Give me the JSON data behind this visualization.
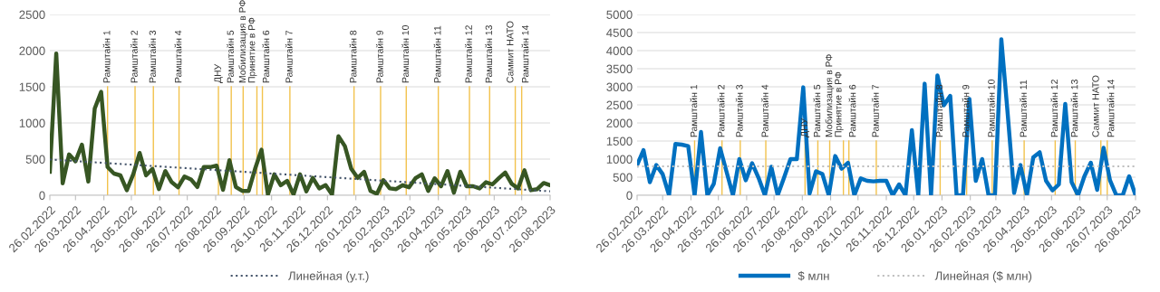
{
  "chart_data": [
    {
      "type": "line",
      "x": [
        "2022-02-26",
        "2022-03-05",
        "2022-03-12",
        "2022-03-19",
        "2022-03-26",
        "2022-04-02",
        "2022-04-09",
        "2022-04-16",
        "2022-04-23",
        "2022-04-30",
        "2022-05-07",
        "2022-05-14",
        "2022-05-21",
        "2022-05-28",
        "2022-06-04",
        "2022-06-11",
        "2022-06-18",
        "2022-06-25",
        "2022-07-02",
        "2022-07-09",
        "2022-07-16",
        "2022-07-23",
        "2022-07-30",
        "2022-08-06",
        "2022-08-13",
        "2022-08-20",
        "2022-08-27",
        "2022-09-03",
        "2022-09-10",
        "2022-09-17",
        "2022-09-24",
        "2022-10-01",
        "2022-10-08",
        "2022-10-15",
        "2022-10-22",
        "2022-10-29",
        "2022-11-05",
        "2022-11-12",
        "2022-11-19",
        "2022-11-26",
        "2022-12-03",
        "2022-12-10",
        "2022-12-17",
        "2022-12-24",
        "2022-12-31",
        "2023-01-07",
        "2023-01-14",
        "2023-01-21",
        "2023-01-28",
        "2023-02-04",
        "2023-02-11",
        "2023-02-18",
        "2023-02-25",
        "2023-03-04",
        "2023-03-11",
        "2023-03-18",
        "2023-03-25",
        "2023-04-01",
        "2023-04-08",
        "2023-04-15",
        "2023-04-22",
        "2023-04-29",
        "2023-05-06",
        "2023-05-13",
        "2023-05-20",
        "2023-05-27",
        "2023-06-03",
        "2023-06-10",
        "2023-06-17",
        "2023-06-24",
        "2023-07-01",
        "2023-07-08",
        "2023-07-15",
        "2023-07-22",
        "2023-07-29",
        "2023-08-05",
        "2023-08-12",
        "2023-08-19",
        "2023-08-26"
      ],
      "series": [
        {
          "color": "#375623",
          "values": [
            325,
            1960,
            165,
            565,
            470,
            700,
            190,
            1200,
            1430,
            390,
            300,
            275,
            70,
            290,
            585,
            275,
            365,
            85,
            335,
            180,
            110,
            260,
            220,
            115,
            390,
            390,
            410,
            75,
            485,
            115,
            60,
            60,
            365,
            630,
            10,
            290,
            140,
            200,
            10,
            290,
            55,
            240,
            95,
            140,
            10,
            815,
            680,
            365,
            240,
            325,
            60,
            20,
            210,
            95,
            85,
            140,
            110,
            235,
            290,
            60,
            235,
            125,
            335,
            35,
            325,
            125,
            125,
            95,
            180,
            150,
            235,
            315,
            160,
            95,
            345,
            70,
            85,
            170,
            140
          ]
        },
        {
          "name": "Линейная (у.т.)",
          "color": "#44546a",
          "line_style": "dotted",
          "x": [
            "2022-02-26",
            "2023-08-26"
          ],
          "values": [
            495,
            55
          ]
        }
      ],
      "xlim": [
        "2022-02-26",
        "2023-08-26"
      ],
      "xticks": [
        {
          "value": "2022-02-26",
          "label": "26.02.2022"
        },
        {
          "value": "2022-03-26",
          "label": "26.03.2022"
        },
        {
          "value": "2022-04-26",
          "label": "26.04.2022"
        },
        {
          "value": "2022-05-26",
          "label": "26.05.2022"
        },
        {
          "value": "2022-06-26",
          "label": "26.06.2022"
        },
        {
          "value": "2022-07-26",
          "label": "26.07.2022"
        },
        {
          "value": "2022-08-26",
          "label": "26.08.2022"
        },
        {
          "value": "2022-09-26",
          "label": "26.09.2022"
        },
        {
          "value": "2022-10-26",
          "label": "26.10.2022"
        },
        {
          "value": "2022-11-26",
          "label": "26.11.2022"
        },
        {
          "value": "2022-12-26",
          "label": "26.12.2022"
        },
        {
          "value": "2023-01-26",
          "label": "26.01.2023"
        },
        {
          "value": "2023-02-26",
          "label": "26.02.2023"
        },
        {
          "value": "2023-03-26",
          "label": "26.03.2023"
        },
        {
          "value": "2023-04-26",
          "label": "26.04.2023"
        },
        {
          "value": "2023-05-26",
          "label": "26.05.2023"
        },
        {
          "value": "2023-06-26",
          "label": "26.06.2023"
        },
        {
          "value": "2023-07-26",
          "label": "26.07.2023"
        },
        {
          "value": "2023-08-26",
          "label": "26.08.2023"
        }
      ],
      "ylim": [
        0,
        2500
      ],
      "yticks": [
        0,
        500,
        1000,
        1500,
        2000,
        2500
      ],
      "grid": "y",
      "legend": "bottom",
      "ref_lines": [
        {
          "axis": "x",
          "value": "2022-04-30",
          "label": "Рамштайн 1",
          "color": "#f2c24c"
        },
        {
          "axis": "x",
          "value": "2022-05-30",
          "label": "Рамштайн 2",
          "color": "#f2c24c"
        },
        {
          "axis": "x",
          "value": "2022-06-19",
          "label": "Рамштайн 3",
          "color": "#f2c24c"
        },
        {
          "axis": "x",
          "value": "2022-07-17",
          "label": "Рамштайн 4",
          "color": "#f2c24c"
        },
        {
          "axis": "x",
          "value": "2022-08-29",
          "label": "ДНУ",
          "color": "#f2c24c"
        },
        {
          "axis": "x",
          "value": "2022-09-12",
          "label": "Рамштайн 5",
          "color": "#f2c24c"
        },
        {
          "axis": "x",
          "value": "2022-09-25",
          "label": "Мобилизация в РФ",
          "color": "#f2c24c"
        },
        {
          "axis": "x",
          "value": "2022-10-10",
          "label": "Принятие в РФ",
          "color": "#f2c24c"
        },
        {
          "axis": "x",
          "value": "2022-10-16",
          "label": "Рамштайн 6",
          "color": "#f2c24c"
        },
        {
          "axis": "x",
          "value": "2022-11-15",
          "label": "Рамштайн 7",
          "color": "#f2c24c"
        },
        {
          "axis": "x",
          "value": "2023-01-24",
          "label": "Рамштайн 8",
          "color": "#f2c24c"
        },
        {
          "axis": "x",
          "value": "2023-02-22",
          "label": "Рамштайн 9",
          "color": "#f2c24c"
        },
        {
          "axis": "x",
          "value": "2023-03-22",
          "label": "Рамштайн 10",
          "color": "#f2c24c"
        },
        {
          "axis": "x",
          "value": "2023-04-26",
          "label": "Рамштайн 11",
          "color": "#f2c24c"
        },
        {
          "axis": "x",
          "value": "2023-05-30",
          "label": "Рамштайн 12",
          "color": "#f2c24c"
        },
        {
          "axis": "x",
          "value": "2023-06-21",
          "label": "Рамштайн 13",
          "color": "#f2c24c"
        },
        {
          "axis": "x",
          "value": "2023-07-19",
          "label": "Саммит НАТО",
          "color": "#f2c24c"
        },
        {
          "axis": "x",
          "value": "2023-07-26",
          "label": "Рамштайн 14",
          "color": "#f2c24c"
        }
      ]
    },
    {
      "type": "line",
      "x": [
        "2022-02-26",
        "2022-03-05",
        "2022-03-12",
        "2022-03-19",
        "2022-03-26",
        "2022-04-02",
        "2022-04-09",
        "2022-04-16",
        "2022-04-23",
        "2022-04-30",
        "2022-05-07",
        "2022-05-14",
        "2022-05-21",
        "2022-05-28",
        "2022-06-04",
        "2022-06-11",
        "2022-06-18",
        "2022-06-25",
        "2022-07-02",
        "2022-07-09",
        "2022-07-16",
        "2022-07-23",
        "2022-07-30",
        "2022-08-06",
        "2022-08-13",
        "2022-08-20",
        "2022-08-27",
        "2022-09-03",
        "2022-09-10",
        "2022-09-17",
        "2022-09-24",
        "2022-10-01",
        "2022-10-08",
        "2022-10-15",
        "2022-10-22",
        "2022-10-29",
        "2022-11-05",
        "2022-11-12",
        "2022-11-19",
        "2022-11-26",
        "2022-12-03",
        "2022-12-10",
        "2022-12-17",
        "2022-12-24",
        "2022-12-31",
        "2023-01-07",
        "2023-01-14",
        "2023-01-21",
        "2023-01-28",
        "2023-02-04",
        "2023-02-11",
        "2023-02-18",
        "2023-02-25",
        "2023-03-04",
        "2023-03-11",
        "2023-03-18",
        "2023-03-25",
        "2023-04-01",
        "2023-04-08",
        "2023-04-15",
        "2023-04-22",
        "2023-04-29",
        "2023-05-06",
        "2023-05-13",
        "2023-05-20",
        "2023-05-27",
        "2023-06-03",
        "2023-06-10",
        "2023-06-17",
        "2023-06-24",
        "2023-07-01",
        "2023-07-08",
        "2023-07-15",
        "2023-07-22",
        "2023-07-29",
        "2023-08-05",
        "2023-08-12",
        "2023-08-19",
        "2023-08-26"
      ],
      "series": [
        {
          "name": "$ млн",
          "color": "#0070c0",
          "values": [
            835,
            1250,
            360,
            835,
            585,
            0,
            1420,
            1400,
            1360,
            0,
            1750,
            0,
            315,
            1300,
            650,
            0,
            1000,
            415,
            885,
            485,
            0,
            790,
            0,
            485,
            1000,
            1000,
            2985,
            50,
            665,
            585,
            0,
            1085,
            735,
            900,
            0,
            465,
            400,
            385,
            400,
            400,
            0,
            300,
            0,
            1800,
            0,
            3085,
            0,
            3315,
            2485,
            2750,
            0,
            0,
            2665,
            400,
            1000,
            0,
            0,
            4315,
            2240,
            65,
            835,
            0,
            1050,
            1190,
            400,
            135,
            300,
            2525,
            360,
            0,
            525,
            900,
            150,
            1315,
            415,
            0,
            0,
            525,
            0
          ]
        },
        {
          "name": "Линейная ($ млн)",
          "color": "#bfbfbf",
          "line_style": "dotted",
          "x": [
            "2022-02-26",
            "2023-08-26"
          ],
          "values": [
            800,
            800
          ]
        }
      ],
      "xlim": [
        "2022-02-26",
        "2023-08-26"
      ],
      "xticks": [
        {
          "value": "2022-02-26",
          "label": "26.02.2022"
        },
        {
          "value": "2022-03-26",
          "label": "26.03.2022"
        },
        {
          "value": "2022-04-26",
          "label": "26.04.2022"
        },
        {
          "value": "2022-05-26",
          "label": "26.05.2022"
        },
        {
          "value": "2022-06-26",
          "label": "26.06.2022"
        },
        {
          "value": "2022-07-26",
          "label": "26.07.2022"
        },
        {
          "value": "2022-08-26",
          "label": "26.08.2022"
        },
        {
          "value": "2022-09-26",
          "label": "26.09.2022"
        },
        {
          "value": "2022-10-26",
          "label": "26.10.2022"
        },
        {
          "value": "2022-11-26",
          "label": "26.11.2022"
        },
        {
          "value": "2022-12-26",
          "label": "26.12.2022"
        },
        {
          "value": "2023-01-26",
          "label": "26.01.2023"
        },
        {
          "value": "2023-02-26",
          "label": "26.02.2023"
        },
        {
          "value": "2023-03-26",
          "label": "26.03.2023"
        },
        {
          "value": "2023-04-26",
          "label": "26.04.2023"
        },
        {
          "value": "2023-05-26",
          "label": "26.05.2023"
        },
        {
          "value": "2023-06-26",
          "label": "26.06.2023"
        },
        {
          "value": "2023-07-26",
          "label": "26.07.2023"
        },
        {
          "value": "2023-08-26",
          "label": "26.08.2023"
        }
      ],
      "ylim": [
        0,
        5000
      ],
      "yticks": [
        0,
        500,
        1000,
        1500,
        2000,
        2500,
        3000,
        3500,
        4000,
        4500,
        5000
      ],
      "grid": "y",
      "legend": "bottom",
      "ref_lines": [
        {
          "axis": "x",
          "value": "2022-04-30",
          "label": "Рамштайн 1",
          "color": "#f2c24c"
        },
        {
          "axis": "x",
          "value": "2022-05-30",
          "label": "Рамштайн 2",
          "color": "#f2c24c"
        },
        {
          "axis": "x",
          "value": "2022-06-19",
          "label": "Рамштайн 3",
          "color": "#f2c24c"
        },
        {
          "axis": "x",
          "value": "2022-07-17",
          "label": "Рамштайн 4",
          "color": "#f2c24c"
        },
        {
          "axis": "x",
          "value": "2022-08-29",
          "label": "ДНУ",
          "color": "#f2c24c"
        },
        {
          "axis": "x",
          "value": "2022-09-12",
          "label": "Рамштайн 5",
          "color": "#f2c24c"
        },
        {
          "axis": "x",
          "value": "2022-09-25",
          "label": "Мобилизация в РФ",
          "color": "#f2c24c"
        },
        {
          "axis": "x",
          "value": "2022-10-10",
          "label": "Принятие в РФ",
          "color": "#f2c24c"
        },
        {
          "axis": "x",
          "value": "2022-10-16",
          "label": "Рамштайн 6",
          "color": "#f2c24c"
        },
        {
          "axis": "x",
          "value": "2022-11-15",
          "label": "Рамштайн 7",
          "color": "#f2c24c"
        },
        {
          "axis": "x",
          "value": "2023-01-24",
          "label": "Рамштайн 8",
          "color": "#f2c24c"
        },
        {
          "axis": "x",
          "value": "2023-02-22",
          "label": "Рамштайн 9",
          "color": "#f2c24c"
        },
        {
          "axis": "x",
          "value": "2023-03-22",
          "label": "Рамштайн 10",
          "color": "#f2c24c"
        },
        {
          "axis": "x",
          "value": "2023-04-26",
          "label": "Рамштайн 11",
          "color": "#f2c24c"
        },
        {
          "axis": "x",
          "value": "2023-05-30",
          "label": "Рамштайн 12",
          "color": "#f2c24c"
        },
        {
          "axis": "x",
          "value": "2023-06-21",
          "label": "Рамштайн 13",
          "color": "#f2c24c"
        },
        {
          "axis": "x",
          "value": "2023-07-19",
          "label": "Саммит НАТО",
          "color": "#f2c24c"
        },
        {
          "axis": "x",
          "value": "2023-07-26",
          "label": "Рамштайн 14",
          "color": "#f2c24c"
        }
      ]
    }
  ]
}
